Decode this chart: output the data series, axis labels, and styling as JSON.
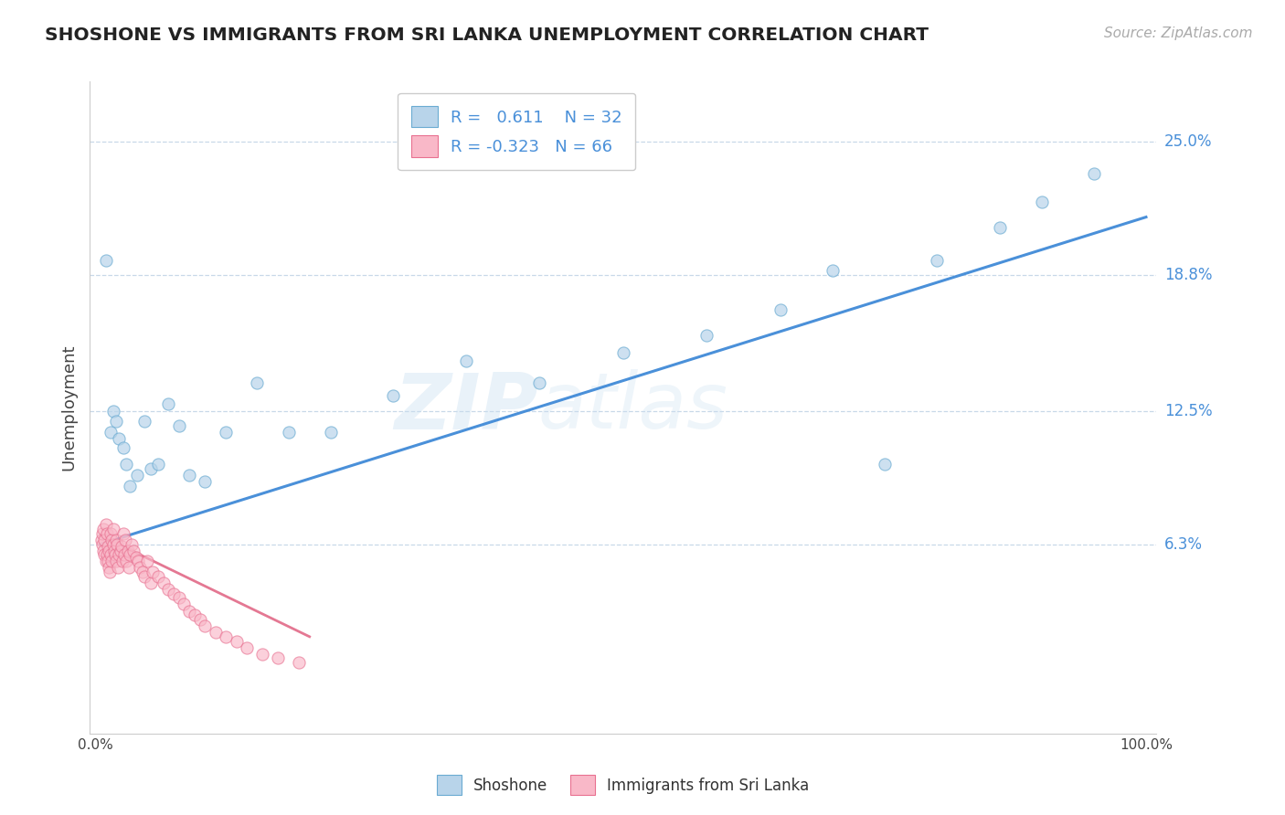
{
  "title": "SHOSHONE VS IMMIGRANTS FROM SRI LANKA UNEMPLOYMENT CORRELATION CHART",
  "source_text": "Source: ZipAtlas.com",
  "ylabel": "Unemployment",
  "ytick_labels": [
    "6.3%",
    "12.5%",
    "18.8%",
    "25.0%"
  ],
  "ytick_vals": [
    0.063,
    0.125,
    0.188,
    0.25
  ],
  "legend_label1": "Shoshone",
  "legend_label2": "Immigrants from Sri Lanka",
  "r1": 0.611,
  "n1": 32,
  "r2": -0.323,
  "n2": 66,
  "watermark": "ZIPatlas",
  "blue_scatter_face": "#b8d4ea",
  "blue_scatter_edge": "#6aabd2",
  "pink_scatter_face": "#f9b8c8",
  "pink_scatter_edge": "#e87090",
  "blue_line_color": "#4a90d9",
  "pink_line_color": "#e06080",
  "grid_color": "#c8d8e8",
  "shoshone_x": [
    0.005,
    0.01,
    0.012,
    0.015,
    0.018,
    0.022,
    0.025,
    0.028,
    0.035,
    0.042,
    0.048,
    0.055,
    0.065,
    0.075,
    0.085,
    0.1,
    0.12,
    0.15,
    0.18,
    0.22,
    0.28,
    0.35,
    0.42,
    0.5,
    0.58,
    0.65,
    0.7,
    0.75,
    0.8,
    0.86,
    0.9,
    0.95
  ],
  "shoshone_y": [
    0.195,
    0.115,
    0.125,
    0.12,
    0.112,
    0.108,
    0.1,
    0.09,
    0.095,
    0.12,
    0.098,
    0.1,
    0.128,
    0.118,
    0.095,
    0.092,
    0.115,
    0.138,
    0.115,
    0.115,
    0.132,
    0.148,
    0.138,
    0.152,
    0.16,
    0.172,
    0.19,
    0.1,
    0.195,
    0.21,
    0.222,
    0.235
  ],
  "sri_lanka_x": [
    0.001,
    0.002,
    0.002,
    0.003,
    0.003,
    0.004,
    0.004,
    0.005,
    0.005,
    0.006,
    0.006,
    0.007,
    0.007,
    0.008,
    0.008,
    0.009,
    0.01,
    0.01,
    0.011,
    0.011,
    0.012,
    0.012,
    0.013,
    0.014,
    0.015,
    0.015,
    0.016,
    0.017,
    0.018,
    0.019,
    0.02,
    0.021,
    0.022,
    0.023,
    0.024,
    0.025,
    0.026,
    0.027,
    0.028,
    0.03,
    0.032,
    0.034,
    0.036,
    0.038,
    0.04,
    0.042,
    0.045,
    0.048,
    0.05,
    0.055,
    0.06,
    0.065,
    0.07,
    0.075,
    0.08,
    0.085,
    0.09,
    0.095,
    0.1,
    0.11,
    0.12,
    0.13,
    0.14,
    0.155,
    0.17,
    0.19
  ],
  "sri_lanka_y": [
    0.065,
    0.063,
    0.068,
    0.06,
    0.07,
    0.058,
    0.065,
    0.055,
    0.072,
    0.058,
    0.068,
    0.055,
    0.062,
    0.052,
    0.06,
    0.05,
    0.068,
    0.058,
    0.065,
    0.055,
    0.063,
    0.07,
    0.06,
    0.058,
    0.065,
    0.055,
    0.063,
    0.052,
    0.058,
    0.06,
    0.062,
    0.055,
    0.068,
    0.058,
    0.065,
    0.055,
    0.06,
    0.052,
    0.058,
    0.063,
    0.06,
    0.057,
    0.055,
    0.052,
    0.05,
    0.048,
    0.055,
    0.045,
    0.05,
    0.048,
    0.045,
    0.042,
    0.04,
    0.038,
    0.035,
    0.032,
    0.03,
    0.028,
    0.025,
    0.022,
    0.02,
    0.018,
    0.015,
    0.012,
    0.01,
    0.008
  ],
  "blue_line_x": [
    0.0,
    1.0
  ],
  "blue_line_y": [
    0.063,
    0.215
  ],
  "pink_line_x": [
    0.0,
    0.2
  ],
  "pink_line_y": [
    0.067,
    0.02
  ],
  "xlim": [
    -0.01,
    1.01
  ],
  "ylim": [
    -0.025,
    0.278
  ]
}
